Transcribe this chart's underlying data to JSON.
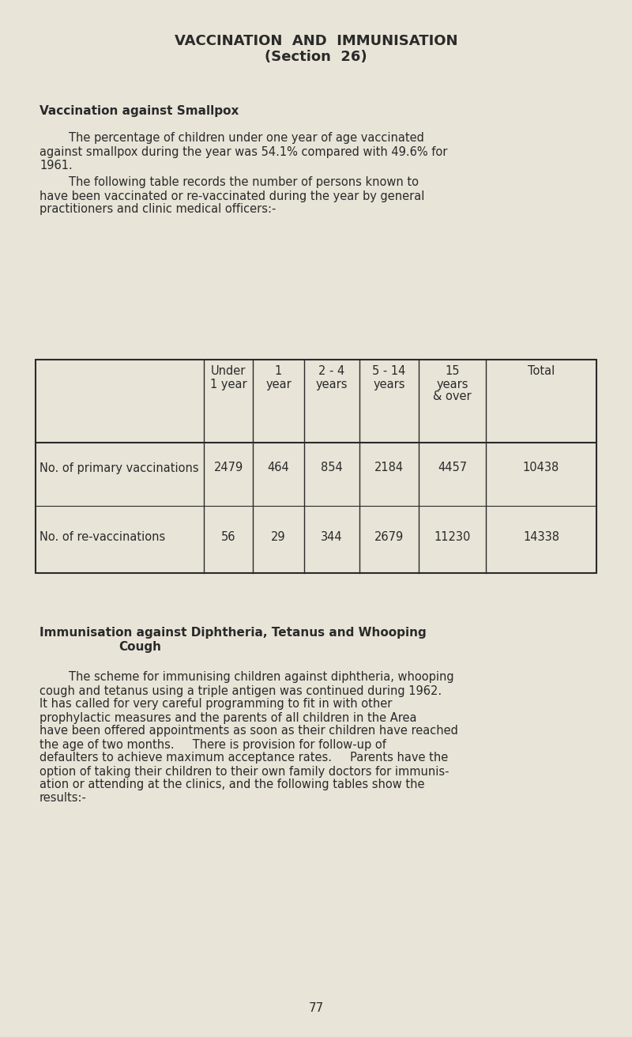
{
  "bg_color": "#e8e4d8",
  "text_color": "#2a2a2a",
  "title_line1": "VACCINATION  AND  IMMUNISATION",
  "title_line2": "(Section  26)",
  "section_heading1": "Vaccination against Smallpox",
  "para1": "        The percentage of children under one year of age vaccinated\nagainst smallpox during the year was 54.1% compared with 49.6% for\n1961.",
  "para2": "        The following table records the number of persons known to\nhave been vaccinated or re-vaccinated during the year by general\npractitioners and clinic medical officers:-",
  "col_headers": [
    "Under\n1 year",
    "1\nyear",
    "2 - 4\nyears",
    "5 - 14\nyears",
    "15\nyears\n& over",
    "Total"
  ],
  "row_labels": [
    "No. of primary vaccinations",
    "No. of re-vaccinations"
  ],
  "table_data": [
    [
      2479,
      464,
      854,
      2184,
      4457,
      10438
    ],
    [
      56,
      29,
      344,
      2679,
      11230,
      14338
    ]
  ],
  "section_heading2_line1": "Immunisation against Diphtheria, Tetanus and Whooping",
  "section_heading2_line2": "Cough",
  "para3_line1": "        The scheme for immunising children against diphtheria, whooping",
  "para3_line2": "cough and tetanus using a triple antigen was continued during 1962.",
  "para3_line3": "It has called for very careful programming to fit in with other",
  "para3_line4": "prophylactic measures and the parents of all children in the Area",
  "para3_line5": "have been offered appointments as soon as their children have reached",
  "para3_line6": "the age of two months.     There is provision for follow-up of",
  "para3_line7": "defaulters to achieve maximum acceptance rates.     Parents have the",
  "para3_line8": "option of taking their children to their own family doctors for immunis-",
  "para3_line9": "ation or attending at the clinics, and the following tables show the",
  "para3_line10": "results:-",
  "page_number": "77",
  "font_size_title": 13,
  "font_size_heading": 11,
  "font_size_body": 10.5,
  "font_size_table": 10.5,
  "font_size_page": 11
}
